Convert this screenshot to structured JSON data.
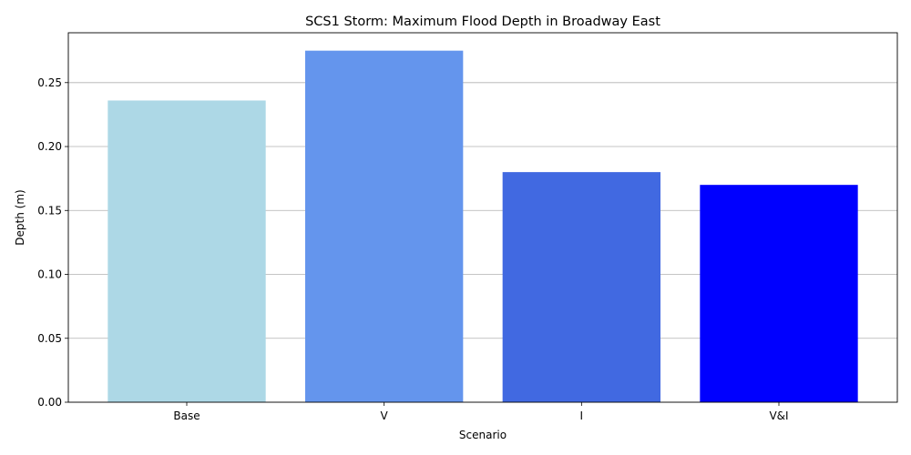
{
  "chart_data": {
    "type": "bar",
    "title": "SCS1 Storm: Maximum Flood Depth in Broadway East",
    "xlabel": "Scenario",
    "ylabel": "Depth (m)",
    "categories": [
      "Base",
      "V",
      "I",
      "V&I"
    ],
    "values": [
      0.236,
      0.275,
      0.18,
      0.17
    ],
    "colors": [
      "#add8e6",
      "#6495ed",
      "#4169e1",
      "#0000ff"
    ],
    "ylim": [
      0,
      0.289
    ],
    "yticks": [
      0.0,
      0.05,
      0.1,
      0.15,
      0.2,
      0.25
    ],
    "ytick_labels": [
      "0.00",
      "0.05",
      "0.10",
      "0.15",
      "0.20",
      "0.25"
    ],
    "grid": "y-major",
    "legend": "none"
  }
}
